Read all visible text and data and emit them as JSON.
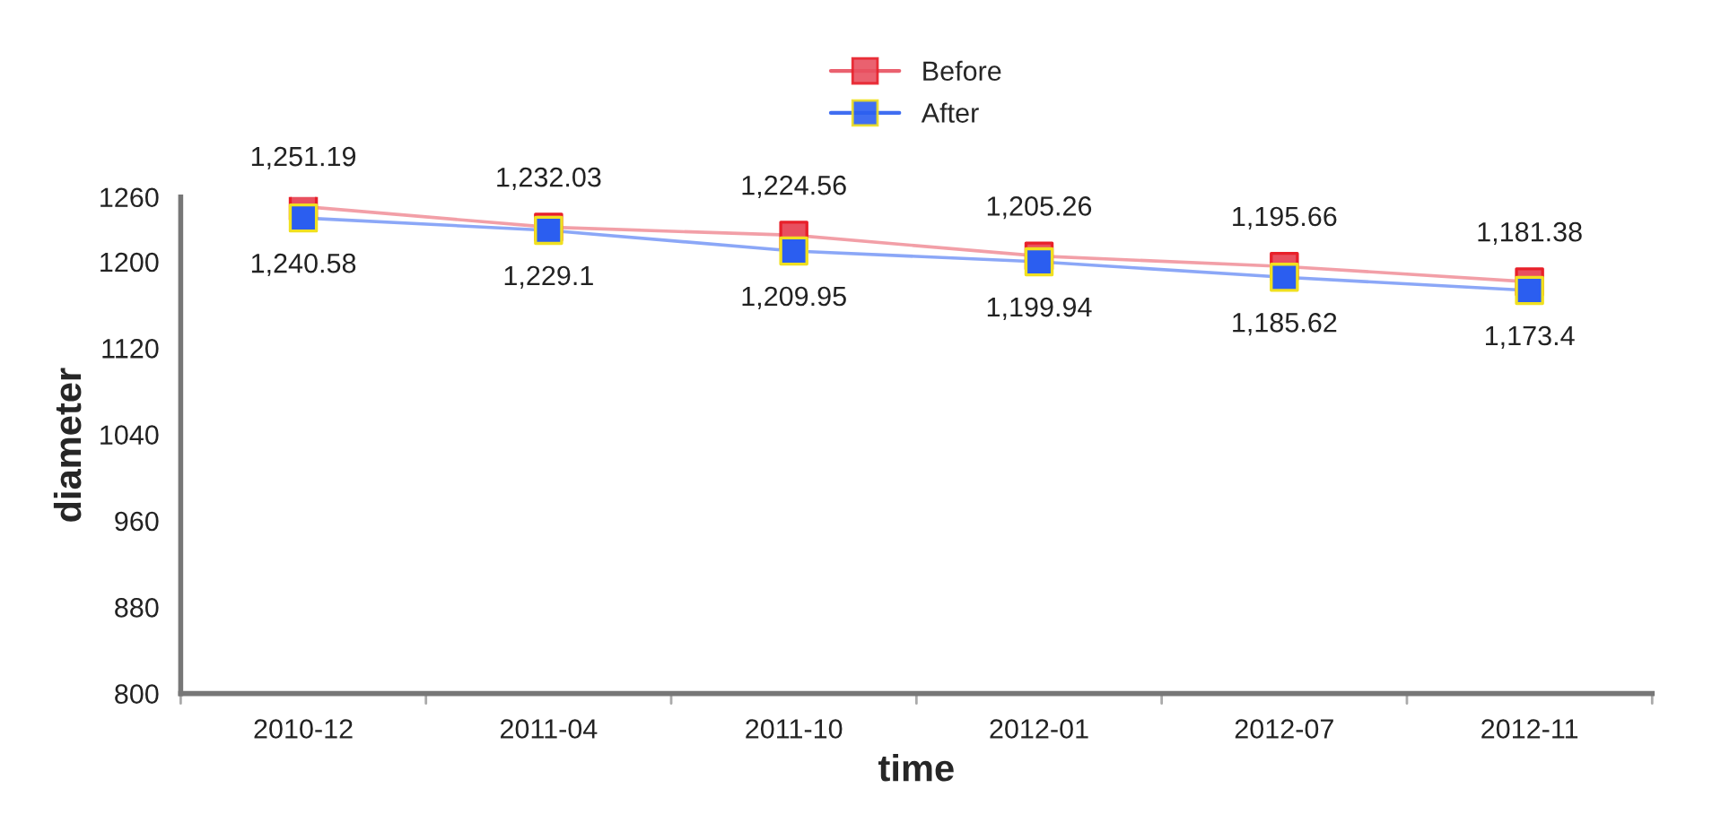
{
  "chart_data": {
    "type": "line",
    "xlabel": "time",
    "ylabel": "diameter",
    "categories": [
      "2010-12",
      "2011-04",
      "2011-10",
      "2012-01",
      "2012-07",
      "2012-11"
    ],
    "series": [
      {
        "name": "Before",
        "color": "#e8505f",
        "values": [
          1251.19,
          1232.03,
          1224.56,
          1205.26,
          1195.66,
          1181.38
        ],
        "value_labels": [
          "1,251.19",
          "1,232.03",
          "1,224.56",
          "1,205.26",
          "1,195.66",
          "1,181.38"
        ]
      },
      {
        "name": "After",
        "color": "#2b5ef0",
        "values": [
          1240.58,
          1229.1,
          1209.95,
          1199.94,
          1185.62,
          1173.4
        ],
        "value_labels": [
          "1,240.58",
          "1,229.1",
          "1,209.95",
          "1,199.94",
          "1,185.62",
          "1,173.4"
        ]
      }
    ],
    "ylim": [
      800,
      1260
    ],
    "yticks": [
      800,
      880,
      960,
      1040,
      1120,
      1200,
      1260
    ],
    "marker": "square",
    "line_style": "solid",
    "grid": false,
    "legend": "top"
  }
}
